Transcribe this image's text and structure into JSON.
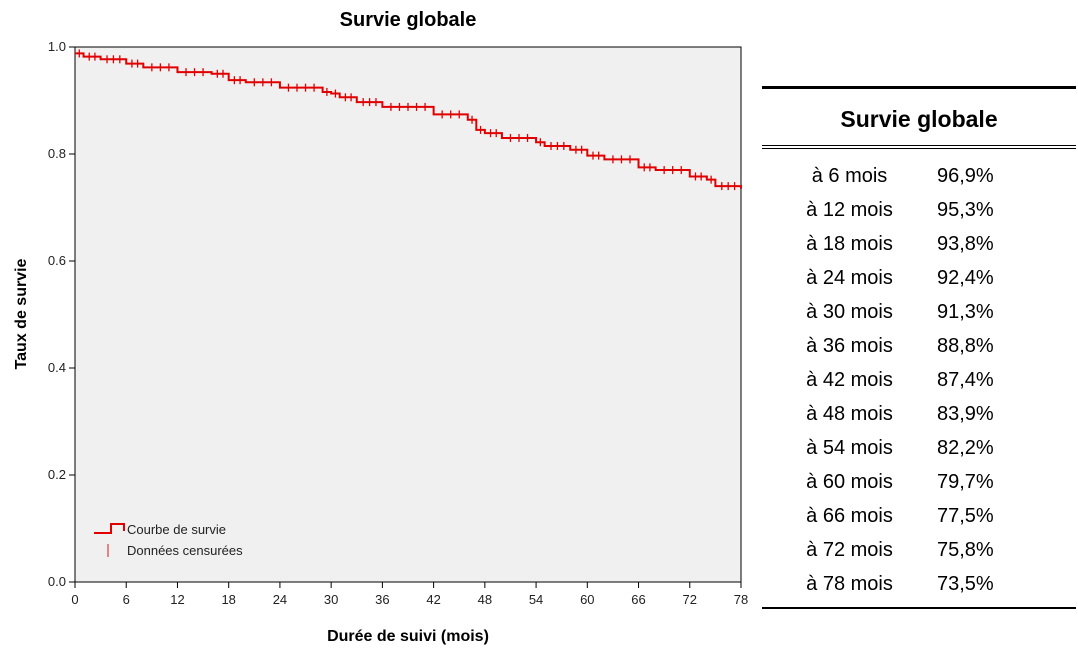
{
  "chart_data": {
    "type": "line",
    "title": "Survie globale",
    "xlabel": "Durée de suivi (mois)",
    "ylabel": "Taux de survie",
    "xlim": [
      0,
      78
    ],
    "ylim": [
      0.0,
      1.0
    ],
    "x_ticks": [
      "0",
      "6",
      "12",
      "18",
      "24",
      "30",
      "36",
      "42",
      "48",
      "54",
      "60",
      "66",
      "72",
      "78"
    ],
    "y_ticks": [
      "0.0",
      "0.2",
      "0.4",
      "0.6",
      "0.8",
      "1.0"
    ],
    "grid": false,
    "legend_position": "bottom-left",
    "legend": [
      {
        "label": "Courbe de survie",
        "symbol": "step-line"
      },
      {
        "label": "Données censurées",
        "symbol": "tick"
      }
    ],
    "series": [
      {
        "name": "Courbe de survie",
        "color": "#e00000",
        "x": [
          0,
          1,
          3,
          6,
          8,
          12,
          16,
          18,
          20,
          24,
          29,
          30,
          31,
          33,
          36,
          42,
          46,
          47,
          48,
          50,
          54,
          55,
          58,
          60,
          62,
          66,
          68,
          72,
          74,
          75,
          78
        ],
        "y": [
          0.988,
          0.982,
          0.977,
          0.969,
          0.962,
          0.953,
          0.95,
          0.938,
          0.934,
          0.924,
          0.916,
          0.913,
          0.906,
          0.897,
          0.888,
          0.874,
          0.864,
          0.845,
          0.839,
          0.83,
          0.822,
          0.815,
          0.808,
          0.797,
          0.79,
          0.775,
          0.77,
          0.758,
          0.752,
          0.74,
          0.735
        ]
      }
    ]
  },
  "table": {
    "title": "Survie globale",
    "rows": [
      {
        "label": "à 6 mois",
        "value": "96,9%"
      },
      {
        "label": "à 12 mois",
        "value": "95,3%"
      },
      {
        "label": "à 18 mois",
        "value": "93,8%"
      },
      {
        "label": "à 24 mois",
        "value": "92,4%"
      },
      {
        "label": "à 30 mois",
        "value": "91,3%"
      },
      {
        "label": "à 36 mois",
        "value": "88,8%"
      },
      {
        "label": "à 42 mois",
        "value": "87,4%"
      },
      {
        "label": "à 48 mois",
        "value": "83,9%"
      },
      {
        "label": "à 54 mois",
        "value": "82,2%"
      },
      {
        "label": "à 60 mois",
        "value": "79,7%"
      },
      {
        "label": "à 66 mois",
        "value": "77,5%"
      },
      {
        "label": "à 72 mois",
        "value": "75,8%"
      },
      {
        "label": "à 78 mois",
        "value": "73,5%"
      }
    ]
  }
}
